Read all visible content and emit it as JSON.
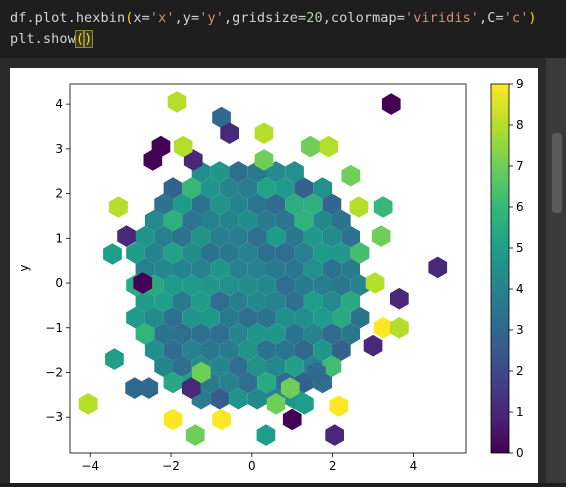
{
  "code": {
    "line1": {
      "p1": "df.plot.hexbin",
      "p2": "(",
      "p3": "x=",
      "p4": "'x'",
      "p5": ",y=",
      "p6": "'y'",
      "p7": ",gridsize=",
      "p8": "20",
      "p9": ",colormap=",
      "p10": "'viridis'",
      "p11": ",C=",
      "p12": "'c'",
      "p13": ")"
    },
    "line2": {
      "p1": "plt.show",
      "p2": "(",
      "p3": ")"
    }
  },
  "chart_data": {
    "type": "hexbin",
    "xlabel": "",
    "ylabel": "y",
    "xlim": [
      -4.5,
      5.3
    ],
    "ylim": [
      -3.8,
      4.45
    ],
    "xticks": [
      -4,
      -2,
      0,
      2,
      4
    ],
    "yticks": [
      -3,
      -2,
      -1,
      0,
      1,
      2,
      3,
      4
    ],
    "colormap": "viridis",
    "colorbar": {
      "min": 0,
      "max": 9,
      "ticks": [
        0,
        1,
        2,
        3,
        4,
        5,
        6,
        7,
        8,
        9
      ]
    },
    "outliers": [
      {
        "x": -1.85,
        "y": 4.05,
        "c": 8
      },
      {
        "x": 3.45,
        "y": 4.0,
        "c": 0
      },
      {
        "x": 4.6,
        "y": 0.35,
        "c": 1
      },
      {
        "x": -4.05,
        "y": -2.7,
        "c": 8
      },
      {
        "x": -3.45,
        "y": 0.65,
        "c": 5
      },
      {
        "x": -3.4,
        "y": -1.7,
        "c": 5
      },
      {
        "x": -1.95,
        "y": -3.05,
        "c": 9
      },
      {
        "x": -0.75,
        "y": -3.05,
        "c": 9
      },
      {
        "x": 1.0,
        "y": -3.05,
        "c": 0
      },
      {
        "x": 2.05,
        "y": -3.4,
        "c": 1
      },
      {
        "x": 2.15,
        "y": -2.75,
        "c": 9
      },
      {
        "x": 3.25,
        "y": 1.7,
        "c": 6
      },
      {
        "x": 3.25,
        "y": -1.0,
        "c": 9
      },
      {
        "x": 3.65,
        "y": -1.0,
        "c": 8
      },
      {
        "x": 3.65,
        "y": -0.35,
        "c": 1
      },
      {
        "x": 3.0,
        "y": -1.4,
        "c": 1
      },
      {
        "x": 1.9,
        "y": 3.05,
        "c": 8
      },
      {
        "x": 1.45,
        "y": 3.05,
        "c": 7
      },
      {
        "x": -2.25,
        "y": 3.05,
        "c": 0
      },
      {
        "x": -2.45,
        "y": 2.75,
        "c": 0
      },
      {
        "x": -1.45,
        "y": 2.75,
        "c": 1
      },
      {
        "x": -3.3,
        "y": 1.7,
        "c": 8
      },
      {
        "x": -3.1,
        "y": 1.05,
        "c": 1
      },
      {
        "x": -2.7,
        "y": 0.0,
        "c": 0
      },
      {
        "x": -0.75,
        "y": 3.7,
        "c": 3
      },
      {
        "x": -0.55,
        "y": 3.35,
        "c": 1
      },
      {
        "x": 0.3,
        "y": 3.35,
        "c": 8
      },
      {
        "x": -1.7,
        "y": 3.05,
        "c": 8
      },
      {
        "x": 0.3,
        "y": 2.75,
        "c": 7
      },
      {
        "x": -1.5,
        "y": -2.35,
        "c": 1
      },
      {
        "x": -1.25,
        "y": -2.0,
        "c": 7
      },
      {
        "x": 0.95,
        "y": -2.35,
        "c": 7
      },
      {
        "x": 0.6,
        "y": -2.7,
        "c": 7
      },
      {
        "x": 1.3,
        "y": -2.7,
        "c": 5
      },
      {
        "x": 1.6,
        "y": -2.0,
        "c": 3
      },
      {
        "x": -1.4,
        "y": -3.4,
        "c": 7
      },
      {
        "x": 0.35,
        "y": -3.4,
        "c": 5
      },
      {
        "x": -2.55,
        "y": -2.35,
        "c": 3
      },
      {
        "x": -2.9,
        "y": -2.35,
        "c": 3
      },
      {
        "x": 3.05,
        "y": 0.0,
        "c": 8
      },
      {
        "x": 3.2,
        "y": 1.05,
        "c": 7
      },
      {
        "x": 2.65,
        "y": 1.7,
        "c": 8
      },
      {
        "x": 2.45,
        "y": 2.4,
        "c": 7
      }
    ]
  }
}
